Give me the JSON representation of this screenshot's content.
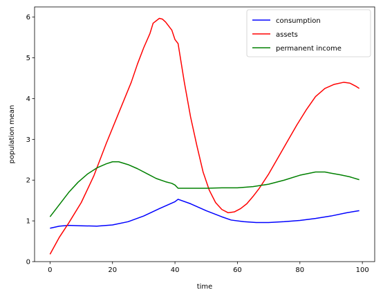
{
  "chart_data": {
    "type": "line",
    "title": "",
    "xlabel": "time",
    "ylabel": "population mean",
    "xlim": [
      -4.95,
      103.95
    ],
    "ylim": [
      0,
      6.25
    ],
    "x_ticks": [
      0,
      20,
      40,
      60,
      80,
      100
    ],
    "y_ticks": [
      0,
      1,
      2,
      3,
      4,
      5,
      6
    ],
    "grid": false,
    "legend_position": "top-right",
    "series": [
      {
        "name": "consumption",
        "color": "#0000ff",
        "points": [
          [
            0,
            0.82
          ],
          [
            3,
            0.87
          ],
          [
            6,
            0.89
          ],
          [
            10,
            0.88
          ],
          [
            15,
            0.87
          ],
          [
            20,
            0.9
          ],
          [
            25,
            0.98
          ],
          [
            30,
            1.12
          ],
          [
            35,
            1.3
          ],
          [
            40,
            1.47
          ],
          [
            41,
            1.53
          ],
          [
            45,
            1.42
          ],
          [
            50,
            1.25
          ],
          [
            55,
            1.1
          ],
          [
            58,
            1.02
          ],
          [
            62,
            0.98
          ],
          [
            66,
            0.96
          ],
          [
            70,
            0.96
          ],
          [
            75,
            0.98
          ],
          [
            80,
            1.01
          ],
          [
            85,
            1.06
          ],
          [
            90,
            1.12
          ],
          [
            95,
            1.2
          ],
          [
            99,
            1.25
          ]
        ]
      },
      {
        "name": "assets",
        "color": "#ff0000",
        "points": [
          [
            0,
            0.18
          ],
          [
            3,
            0.6
          ],
          [
            6,
            0.95
          ],
          [
            10,
            1.45
          ],
          [
            14,
            2.1
          ],
          [
            18,
            2.9
          ],
          [
            22,
            3.65
          ],
          [
            26,
            4.4
          ],
          [
            28,
            4.85
          ],
          [
            30,
            5.25
          ],
          [
            32,
            5.6
          ],
          [
            33,
            5.85
          ],
          [
            35,
            5.97
          ],
          [
            36,
            5.95
          ],
          [
            37,
            5.88
          ],
          [
            39,
            5.68
          ],
          [
            40,
            5.45
          ],
          [
            41,
            5.35
          ],
          [
            43,
            4.4
          ],
          [
            45,
            3.55
          ],
          [
            47,
            2.85
          ],
          [
            49,
            2.2
          ],
          [
            51,
            1.75
          ],
          [
            53,
            1.45
          ],
          [
            55,
            1.28
          ],
          [
            57,
            1.2
          ],
          [
            59,
            1.22
          ],
          [
            61,
            1.3
          ],
          [
            63,
            1.42
          ],
          [
            65,
            1.6
          ],
          [
            67,
            1.8
          ],
          [
            70,
            2.15
          ],
          [
            73,
            2.55
          ],
          [
            76,
            2.95
          ],
          [
            79,
            3.35
          ],
          [
            82,
            3.72
          ],
          [
            85,
            4.05
          ],
          [
            88,
            4.25
          ],
          [
            91,
            4.35
          ],
          [
            94,
            4.4
          ],
          [
            96,
            4.38
          ],
          [
            98,
            4.3
          ],
          [
            99,
            4.25
          ]
        ]
      },
      {
        "name": "permanent income",
        "color": "#008000",
        "points": [
          [
            0,
            1.1
          ],
          [
            3,
            1.4
          ],
          [
            6,
            1.7
          ],
          [
            9,
            1.95
          ],
          [
            12,
            2.15
          ],
          [
            15,
            2.3
          ],
          [
            18,
            2.4
          ],
          [
            20,
            2.45
          ],
          [
            22,
            2.45
          ],
          [
            25,
            2.38
          ],
          [
            28,
            2.28
          ],
          [
            31,
            2.16
          ],
          [
            34,
            2.04
          ],
          [
            37,
            1.96
          ],
          [
            39,
            1.92
          ],
          [
            40,
            1.88
          ],
          [
            41,
            1.8
          ],
          [
            45,
            1.8
          ],
          [
            50,
            1.8
          ],
          [
            55,
            1.81
          ],
          [
            60,
            1.81
          ],
          [
            65,
            1.84
          ],
          [
            70,
            1.9
          ],
          [
            75,
            2.0
          ],
          [
            80,
            2.12
          ],
          [
            85,
            2.2
          ],
          [
            88,
            2.2
          ],
          [
            90,
            2.17
          ],
          [
            93,
            2.13
          ],
          [
            96,
            2.08
          ],
          [
            99,
            2.01
          ]
        ]
      }
    ]
  }
}
